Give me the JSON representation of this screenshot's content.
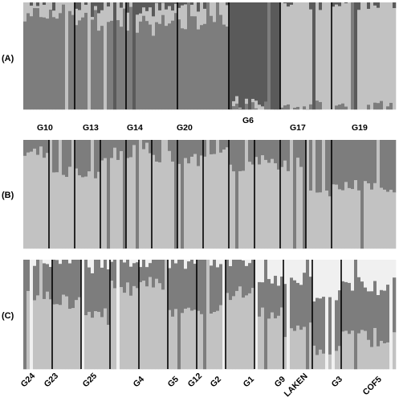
{
  "chart_data": [
    {
      "type": "bar",
      "subtype": "stacked-100-percent-admixture",
      "panel_label": "(A)",
      "ylim": [
        0,
        1
      ],
      "cluster_colors": [
        "#7d7d7d",
        "#c2c2c2",
        "#5a5a5a"
      ],
      "groups": [
        {
          "name": "G10",
          "mean_proportions": [
            0.9,
            0.1,
            0.0
          ]
        },
        {
          "name": "G13",
          "mean_proportions": [
            0.86,
            0.1,
            0.04
          ]
        },
        {
          "name": "G14",
          "mean_proportions": [
            0.82,
            0.12,
            0.06
          ]
        },
        {
          "name": "G20",
          "mean_proportions": [
            0.82,
            0.18,
            0.0
          ]
        },
        {
          "name": "G6",
          "mean_proportions": [
            0.02,
            0.01,
            0.97
          ]
        },
        {
          "name": "G17",
          "mean_proportions": [
            0.0,
            1.0,
            0.0
          ]
        },
        {
          "name": "G19",
          "mean_proportions": [
            0.0,
            1.0,
            0.0
          ]
        }
      ]
    },
    {
      "type": "bar",
      "subtype": "stacked-100-percent-admixture",
      "panel_label": "(B)",
      "ylim": [
        0,
        1
      ],
      "cluster_colors": [
        "#c2c2c2",
        "#7d7d7d"
      ],
      "groups": [
        {
          "name": "",
          "mean_proportions": [
            0.9,
            0.1
          ]
        },
        {
          "name": "",
          "mean_proportions": [
            0.7,
            0.3
          ]
        },
        {
          "name": "",
          "mean_proportions": [
            0.7,
            0.3
          ]
        },
        {
          "name": "",
          "mean_proportions": [
            0.85,
            0.15
          ]
        },
        {
          "name": "",
          "mean_proportions": [
            0.9,
            0.1
          ]
        },
        {
          "name": "",
          "mean_proportions": [
            0.85,
            0.15
          ]
        },
        {
          "name": "",
          "mean_proportions": [
            0.8,
            0.2
          ]
        },
        {
          "name": "",
          "mean_proportions": [
            0.85,
            0.15
          ]
        },
        {
          "name": "",
          "mean_proportions": [
            0.75,
            0.25
          ]
        },
        {
          "name": "",
          "mean_proportions": [
            0.8,
            0.2
          ]
        },
        {
          "name": "",
          "mean_proportions": [
            0.75,
            0.25
          ]
        },
        {
          "name": "",
          "mean_proportions": [
            0.55,
            0.45
          ]
        },
        {
          "name": "",
          "mean_proportions": [
            0.55,
            0.45
          ]
        }
      ]
    },
    {
      "type": "bar",
      "subtype": "stacked-100-percent-admixture",
      "panel_label": "(C)",
      "ylim": [
        0,
        1
      ],
      "cluster_colors": [
        "#c2c2c2",
        "#7d7d7d",
        "#f0f0f0"
      ],
      "groups": [
        {
          "name": "G24",
          "mean_proportions": [
            0.7,
            0.3,
            0.0
          ]
        },
        {
          "name": "G23",
          "mean_proportions": [
            0.6,
            0.4,
            0.0
          ]
        },
        {
          "name": "G25",
          "mean_proportions": [
            0.5,
            0.45,
            0.05
          ]
        },
        {
          "name": "G4",
          "mean_proportions": [
            0.75,
            0.25,
            0.0
          ]
        },
        {
          "name": "G5",
          "mean_proportions": [
            0.8,
            0.2,
            0.0
          ]
        },
        {
          "name": "G12",
          "mean_proportions": [
            0.55,
            0.45,
            0.0
          ]
        },
        {
          "name": "G2",
          "mean_proportions": [
            0.55,
            0.45,
            0.0
          ]
        },
        {
          "name": "G1",
          "mean_proportions": [
            0.7,
            0.3,
            0.0
          ]
        },
        {
          "name": "G9",
          "mean_proportions": [
            0.5,
            0.3,
            0.2
          ]
        },
        {
          "name": "LAKEN",
          "mean_proportions": [
            0.35,
            0.45,
            0.2
          ]
        },
        {
          "name": "G3",
          "mean_proportions": [
            0.2,
            0.45,
            0.35
          ]
        },
        {
          "name": "COF5",
          "mean_proportions": [
            0.3,
            0.45,
            0.25
          ]
        }
      ]
    }
  ]
}
